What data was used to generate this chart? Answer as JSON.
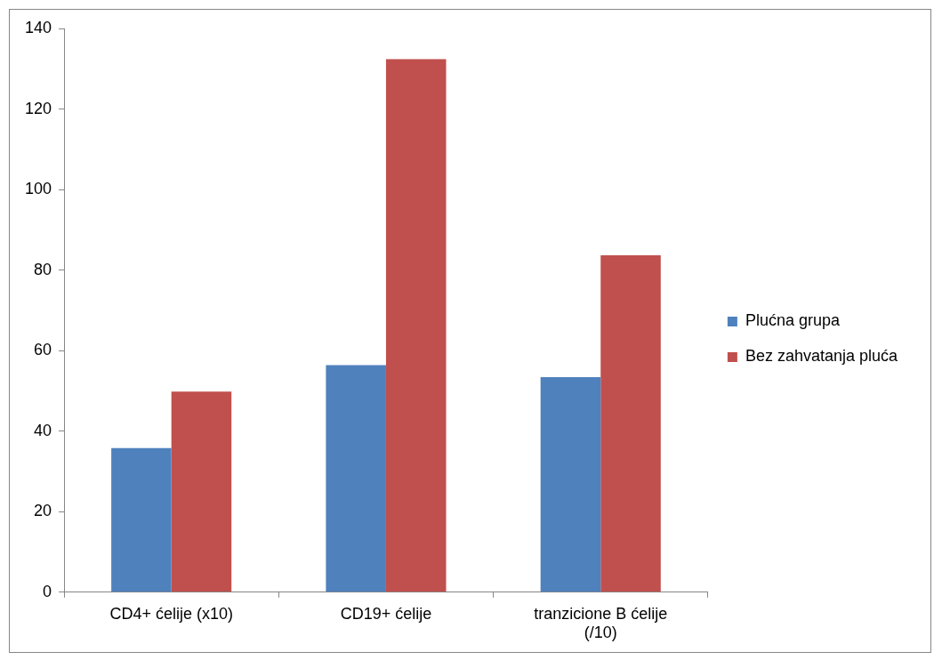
{
  "chart_data": {
    "type": "bar",
    "categories": [
      "CD4+ ćelije (x10)",
      "CD19+ ćelije",
      "tranzicione B ćelije (/10)"
    ],
    "series": [
      {
        "name": "Plućna grupa",
        "color": "#4f81bd",
        "values": [
          35.8,
          56.4,
          53.4
        ]
      },
      {
        "name": "Bez zahvatanja pluća",
        "color": "#c0504d",
        "values": [
          49.8,
          132.4,
          83.7
        ]
      }
    ],
    "ylim": [
      0,
      140
    ],
    "yticks": [
      0,
      20,
      40,
      60,
      80,
      100,
      120,
      140
    ],
    "grid": false,
    "legend": "right"
  }
}
